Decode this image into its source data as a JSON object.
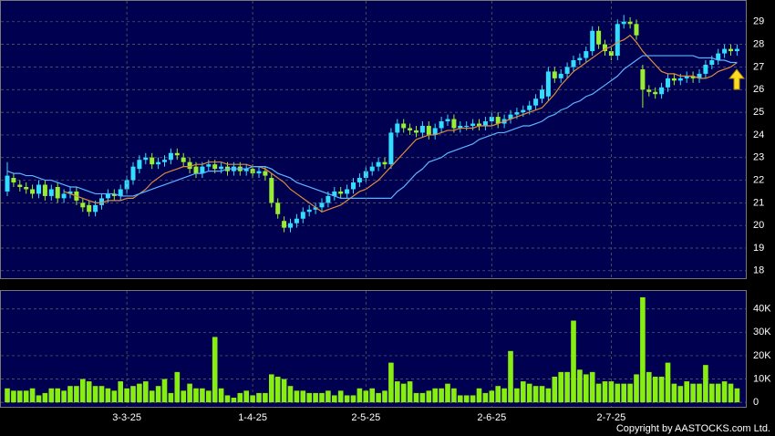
{
  "chart_data": [
    {
      "type": "candlestick",
      "open": [
        21.5,
        22.1,
        21.8,
        21.7,
        21.6,
        21.4,
        21.8,
        21.3,
        21.7,
        21.2,
        21.4,
        21.5,
        21.0,
        20.9,
        20.6,
        20.9,
        21.2,
        21.4,
        21.3,
        21.6,
        22.0,
        22.5,
        22.9,
        23.0,
        22.7,
        22.8,
        22.9,
        23.2,
        23.0,
        22.8,
        22.6,
        22.3,
        22.6,
        22.7,
        22.5,
        22.6,
        22.4,
        22.6,
        22.4,
        22.5,
        22.3,
        22.4,
        22.1,
        21.0,
        20.2,
        19.9,
        20.1,
        20.3,
        20.6,
        20.7,
        20.8,
        21.0,
        21.3,
        21.5,
        21.4,
        21.6,
        21.9,
        22.1,
        22.4,
        22.6,
        22.8,
        22.7,
        24.1,
        24.5,
        24.3,
        24.2,
        24.1,
        24.4,
        24.0,
        24.3,
        24.6,
        24.7,
        24.3,
        24.4,
        24.4,
        24.5,
        24.4,
        24.6,
        24.8,
        24.5,
        24.7,
        24.9,
        25.0,
        25.1,
        25.3,
        25.6,
        25.7,
        26.8,
        26.5,
        26.7,
        27.0,
        27.3,
        27.4,
        27.7,
        28.6,
        28.0,
        27.7,
        27.5,
        28.9,
        29.0,
        28.9,
        26.9,
        26.0,
        25.9,
        25.8,
        26.1,
        26.5,
        26.4,
        26.5,
        26.6,
        26.5,
        26.7,
        27.1,
        27.3,
        27.6,
        27.8,
        27.7
      ],
      "high": [
        22.8,
        22.3,
        22.0,
        21.9,
        21.8,
        22.0,
        22.0,
        21.8,
        21.9,
        21.6,
        21.7,
        21.7,
        21.2,
        21.1,
        21.1,
        21.4,
        21.6,
        21.6,
        21.8,
        22.2,
        22.8,
        23.1,
        23.2,
        23.2,
        23.0,
        23.1,
        23.4,
        23.4,
        23.2,
        23.0,
        22.8,
        22.8,
        22.9,
        22.9,
        22.8,
        22.8,
        22.8,
        22.8,
        22.7,
        22.7,
        22.6,
        22.6,
        22.3,
        21.2,
        20.4,
        20.3,
        20.5,
        20.8,
        20.9,
        21.0,
        21.2,
        21.5,
        21.7,
        21.7,
        21.8,
        22.1,
        22.3,
        22.6,
        22.8,
        23.0,
        23.0,
        24.3,
        24.7,
        24.7,
        24.5,
        24.4,
        24.6,
        24.6,
        24.5,
        24.8,
        24.9,
        24.9,
        24.6,
        24.6,
        24.7,
        24.7,
        24.8,
        25.0,
        25.0,
        24.9,
        25.1,
        25.2,
        25.3,
        25.5,
        25.8,
        26.2,
        27.0,
        27.0,
        26.9,
        27.2,
        27.5,
        27.6,
        27.9,
        28.8,
        28.8,
        28.2,
        27.9,
        29.1,
        29.3,
        29.2,
        29.1,
        27.1,
        26.2,
        26.1,
        26.3,
        26.7,
        26.7,
        26.7,
        26.8,
        26.8,
        26.9,
        27.3,
        27.5,
        27.8,
        28.0,
        28.0,
        28.0
      ],
      "low": [
        21.3,
        21.7,
        21.5,
        21.4,
        21.2,
        21.2,
        21.1,
        21.1,
        21.0,
        21.0,
        21.2,
        20.9,
        20.6,
        20.4,
        20.4,
        20.7,
        21.0,
        21.1,
        21.1,
        21.4,
        21.8,
        22.3,
        22.7,
        22.5,
        22.5,
        22.6,
        22.7,
        22.9,
        22.6,
        22.3,
        22.1,
        22.1,
        22.4,
        22.3,
        22.3,
        22.2,
        22.2,
        22.2,
        22.2,
        22.1,
        22.1,
        22.0,
        20.8,
        20.3,
        19.7,
        19.7,
        19.9,
        20.1,
        20.4,
        20.5,
        20.6,
        20.8,
        21.1,
        21.2,
        21.2,
        21.4,
        21.7,
        21.9,
        22.2,
        22.4,
        22.5,
        22.5,
        23.9,
        24.1,
        24.0,
        23.9,
        23.9,
        23.8,
        23.8,
        24.1,
        24.4,
        24.1,
        24.1,
        24.2,
        24.2,
        24.2,
        24.2,
        24.4,
        24.3,
        24.3,
        24.5,
        24.7,
        24.8,
        24.9,
        25.1,
        25.4,
        25.5,
        26.3,
        26.3,
        26.5,
        26.8,
        27.1,
        27.2,
        27.5,
        27.8,
        27.5,
        27.3,
        27.3,
        28.7,
        28.7,
        28.2,
        25.2,
        25.7,
        25.6,
        25.6,
        25.9,
        26.2,
        26.2,
        26.3,
        26.3,
        26.3,
        26.5,
        26.9,
        27.1,
        27.4,
        27.5,
        27.5
      ],
      "close": [
        22.2,
        21.9,
        21.7,
        21.6,
        21.4,
        21.8,
        21.3,
        21.6,
        21.2,
        21.4,
        21.5,
        21.1,
        20.8,
        20.6,
        20.9,
        21.2,
        21.4,
        21.3,
        21.6,
        22.0,
        22.6,
        22.9,
        23.0,
        22.7,
        22.8,
        22.9,
        23.2,
        23.1,
        22.8,
        22.5,
        22.3,
        22.6,
        22.7,
        22.5,
        22.6,
        22.4,
        22.6,
        22.4,
        22.5,
        22.3,
        22.4,
        22.2,
        21.0,
        20.5,
        19.9,
        20.1,
        20.3,
        20.6,
        20.7,
        20.8,
        21.0,
        21.3,
        21.5,
        21.4,
        21.6,
        21.9,
        22.1,
        22.4,
        22.6,
        22.8,
        22.7,
        24.1,
        24.5,
        24.3,
        24.2,
        24.1,
        24.4,
        24.0,
        24.3,
        24.6,
        24.7,
        24.3,
        24.4,
        24.4,
        24.5,
        24.4,
        24.6,
        24.8,
        24.5,
        24.7,
        24.9,
        25.0,
        25.1,
        25.3,
        25.6,
        26.0,
        26.8,
        26.5,
        26.7,
        27.0,
        27.3,
        27.4,
        27.7,
        28.6,
        28.0,
        27.7,
        27.5,
        28.9,
        29.0,
        28.9,
        28.4,
        26.0,
        25.9,
        25.8,
        26.1,
        26.5,
        26.4,
        26.5,
        26.6,
        26.5,
        26.7,
        27.1,
        27.3,
        27.6,
        27.8,
        27.7,
        27.8
      ],
      "up_color": "#33ddff",
      "down_color": "#99ee33",
      "series": [
        {
          "color": "#e08a3c",
          "values": [
            null,
            null,
            null,
            null,
            null,
            null,
            null,
            null,
            null,
            21.5,
            21.4,
            21.3,
            21.2,
            21.1,
            21.0,
            21.0,
            21.1,
            21.1,
            21.1,
            21.2,
            21.2,
            21.4,
            21.6,
            21.9,
            22.1,
            22.3,
            22.4,
            22.5,
            22.6,
            22.6,
            22.7,
            22.7,
            22.8,
            22.8,
            22.8,
            22.7,
            22.7,
            22.7,
            22.7,
            22.6,
            22.6,
            22.5,
            22.3,
            22.1,
            21.9,
            21.6,
            21.4,
            21.2,
            21.0,
            20.8,
            20.6,
            20.7,
            20.8,
            20.9,
            21.1,
            21.3,
            21.5,
            21.6,
            21.8,
            22.0,
            22.3,
            22.6,
            22.9,
            23.2,
            23.5,
            23.8,
            23.9,
            24.0,
            24.0,
            24.1,
            24.2,
            24.2,
            24.3,
            24.3,
            24.3,
            24.4,
            24.4,
            24.4,
            24.5,
            24.6,
            24.7,
            24.8,
            24.9,
            25.0,
            25.1,
            25.2,
            25.5,
            25.8,
            26.2,
            26.5,
            26.8,
            27.0,
            27.2,
            27.4,
            27.6,
            27.8,
            27.9,
            28.1,
            28.2,
            28.4,
            28.1,
            27.7,
            27.4,
            27.1,
            26.8,
            26.7,
            26.7,
            26.6,
            26.6,
            26.6,
            26.5,
            26.5,
            26.6,
            26.8,
            26.9,
            27.0,
            27.2
          ]
        },
        {
          "color": "#5cb4ff",
          "values": [
            22.4,
            22.3,
            22.3,
            22.2,
            22.2,
            22.1,
            22.0,
            22.0,
            21.9,
            21.8,
            21.7,
            21.7,
            21.6,
            21.5,
            21.4,
            21.4,
            21.4,
            21.4,
            21.3,
            21.3,
            21.3,
            21.4,
            21.5,
            21.6,
            21.7,
            21.8,
            21.9,
            22.0,
            22.1,
            22.2,
            22.3,
            22.3,
            22.4,
            22.4,
            22.4,
            22.5,
            22.5,
            22.5,
            22.5,
            22.6,
            22.6,
            22.6,
            22.5,
            22.3,
            22.2,
            22.1,
            21.9,
            21.8,
            21.7,
            21.6,
            21.5,
            21.4,
            21.3,
            21.2,
            21.2,
            21.2,
            21.2,
            21.2,
            21.2,
            21.2,
            21.2,
            21.2,
            21.5,
            21.7,
            22.0,
            22.3,
            22.5,
            22.8,
            22.9,
            23.0,
            23.2,
            23.3,
            23.4,
            23.5,
            23.6,
            23.8,
            23.9,
            24.0,
            24.1,
            24.1,
            24.2,
            24.3,
            24.4,
            24.4,
            24.5,
            24.6,
            24.8,
            24.9,
            25.1,
            25.2,
            25.4,
            25.5,
            25.7,
            25.8,
            26.0,
            26.2,
            26.4,
            26.6,
            26.9,
            27.1,
            27.3,
            27.5,
            27.5,
            27.5,
            27.5,
            27.5,
            27.5,
            27.5,
            27.5,
            27.5,
            27.4,
            27.4,
            27.4,
            27.3,
            27.3,
            27.2,
            27.2
          ]
        }
      ],
      "ylim": [
        17.67,
        29.92
      ],
      "yticks": [
        18,
        19,
        20,
        21,
        22,
        23,
        24,
        25,
        26,
        27,
        28,
        29
      ],
      "grid": true
    },
    {
      "type": "bar",
      "categories": [
        null,
        null,
        null,
        null,
        null,
        null,
        null,
        null,
        null,
        null,
        null,
        null,
        null,
        null,
        null,
        null,
        null,
        null,
        null,
        "3-3-25",
        null,
        null,
        null,
        null,
        null,
        null,
        null,
        null,
        null,
        null,
        null,
        null,
        null,
        null,
        null,
        null,
        null,
        null,
        null,
        "1-4-25",
        null,
        null,
        null,
        null,
        null,
        null,
        null,
        null,
        null,
        null,
        null,
        null,
        null,
        null,
        null,
        null,
        null,
        "2-5-25",
        null,
        null,
        null,
        null,
        null,
        null,
        null,
        null,
        null,
        null,
        null,
        null,
        null,
        null,
        null,
        null,
        null,
        null,
        null,
        "2-6-25",
        null,
        null,
        null,
        null,
        null,
        null,
        null,
        null,
        null,
        null,
        null,
        null,
        null,
        null,
        null,
        null,
        null,
        null,
        "2-7-25",
        null,
        null,
        null,
        null,
        null,
        null,
        null,
        null,
        null,
        null,
        null,
        null,
        null,
        null,
        null,
        null,
        null,
        null,
        null,
        null
      ],
      "values": [
        6000,
        5000,
        5000,
        5000,
        6000,
        3000,
        4000,
        6000,
        6000,
        5000,
        7000,
        7000,
        10000,
        9000,
        7000,
        7000,
        6000,
        5000,
        9000,
        6000,
        7000,
        8000,
        9000,
        5000,
        7000,
        10000,
        4000,
        13000,
        5000,
        8000,
        6000,
        6000,
        5000,
        28000,
        6000,
        3000,
        2000,
        4000,
        5000,
        3000,
        4000,
        4000,
        12000,
        11000,
        10000,
        7000,
        5000,
        5000,
        4000,
        4000,
        4000,
        5000,
        3000,
        5000,
        3000,
        3000,
        6000,
        5000,
        6000,
        4000,
        5000,
        17000,
        9000,
        8000,
        9000,
        4000,
        4000,
        5000,
        6000,
        6000,
        8000,
        6000,
        3000,
        3000,
        3000,
        6000,
        4000,
        5000,
        7000,
        6000,
        22000,
        6000,
        9000,
        8000,
        7000,
        7000,
        6000,
        11000,
        13000,
        13000,
        35000,
        14000,
        12000,
        13000,
        8000,
        9000,
        9000,
        8000,
        8000,
        8000,
        12000,
        45000,
        13000,
        11000,
        11000,
        17000,
        8000,
        7000,
        9000,
        8000,
        8000,
        16000,
        8000,
        8000,
        9000,
        8000,
        6000
      ],
      "color": "#88ee11",
      "ylim": [
        -1900,
        47700
      ],
      "yticks": [
        0,
        {
          "value": 10000,
          "label": "10K"
        },
        {
          "value": 20000,
          "label": "20K"
        },
        {
          "value": 30000,
          "label": "30K"
        },
        {
          "value": 40000,
          "label": "40K"
        }
      ],
      "grid": true
    }
  ],
  "copyright": "Copyright by AASTOCKS.com Ltd."
}
